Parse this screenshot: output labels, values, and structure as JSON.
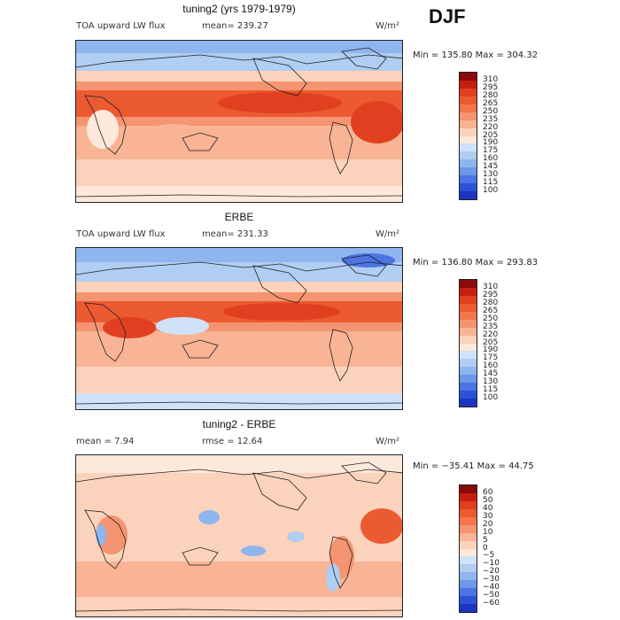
{
  "season": "DJF",
  "panels": [
    {
      "title": "tuning2 (yrs 1979-1979)",
      "left_label": "TOA upward LW flux",
      "stat1": "mean= 239.27",
      "stat2": "",
      "units": "W/m²",
      "minmax": "Min = 135.80 Max = 304.32",
      "colorbar": {
        "labels": [
          "310",
          "295",
          "280",
          "265",
          "250",
          "235",
          "220",
          "205",
          "190",
          "175",
          "160",
          "145",
          "130",
          "115",
          "100"
        ],
        "colors": [
          "#8b0a0a",
          "#c81e12",
          "#e0401f",
          "#ec5a31",
          "#f2764c",
          "#f59470",
          "#f8b495",
          "#fbd2bb",
          "#fde9dc",
          "#cfe2f7",
          "#b0cdf2",
          "#8fb5ef",
          "#6e97ea",
          "#4c74e2",
          "#2d52d6",
          "#1a36bf"
        ]
      }
    },
    {
      "title": "ERBE",
      "left_label": "TOA upward LW flux",
      "stat1": "mean= 231.33",
      "stat2": "",
      "units": "W/m²",
      "minmax": "Min = 136.80 Max = 293.83",
      "colorbar": {
        "labels": [
          "310",
          "295",
          "280",
          "265",
          "250",
          "235",
          "220",
          "205",
          "190",
          "175",
          "160",
          "145",
          "130",
          "115",
          "100"
        ],
        "colors": [
          "#8b0a0a",
          "#c81e12",
          "#e0401f",
          "#ec5a31",
          "#f2764c",
          "#f59470",
          "#f8b495",
          "#fbd2bb",
          "#fde9dc",
          "#cfe2f7",
          "#b0cdf2",
          "#8fb5ef",
          "#6e97ea",
          "#4c74e2",
          "#2d52d6",
          "#1a36bf"
        ]
      }
    },
    {
      "title": "tuning2 - ERBE",
      "left_label": "mean =    7.94",
      "stat1": "rmse =   12.64",
      "stat2": "",
      "units": "W/m²",
      "minmax": "Min = −35.41 Max =  44.75",
      "colorbar": {
        "labels": [
          "60",
          "50",
          "40",
          "30",
          "20",
          "10",
          "5",
          "0",
          "−5",
          "−10",
          "−20",
          "−30",
          "−40",
          "−50",
          "−60"
        ],
        "colors": [
          "#8b0a0a",
          "#c81e12",
          "#e0401f",
          "#ec5a31",
          "#f2764c",
          "#f59470",
          "#f8b495",
          "#fbd2bb",
          "#fde9dc",
          "#cfe2f7",
          "#b0cdf2",
          "#8fb5ef",
          "#6e97ea",
          "#4c74e2",
          "#2d52d6",
          "#1a36bf"
        ]
      }
    }
  ]
}
